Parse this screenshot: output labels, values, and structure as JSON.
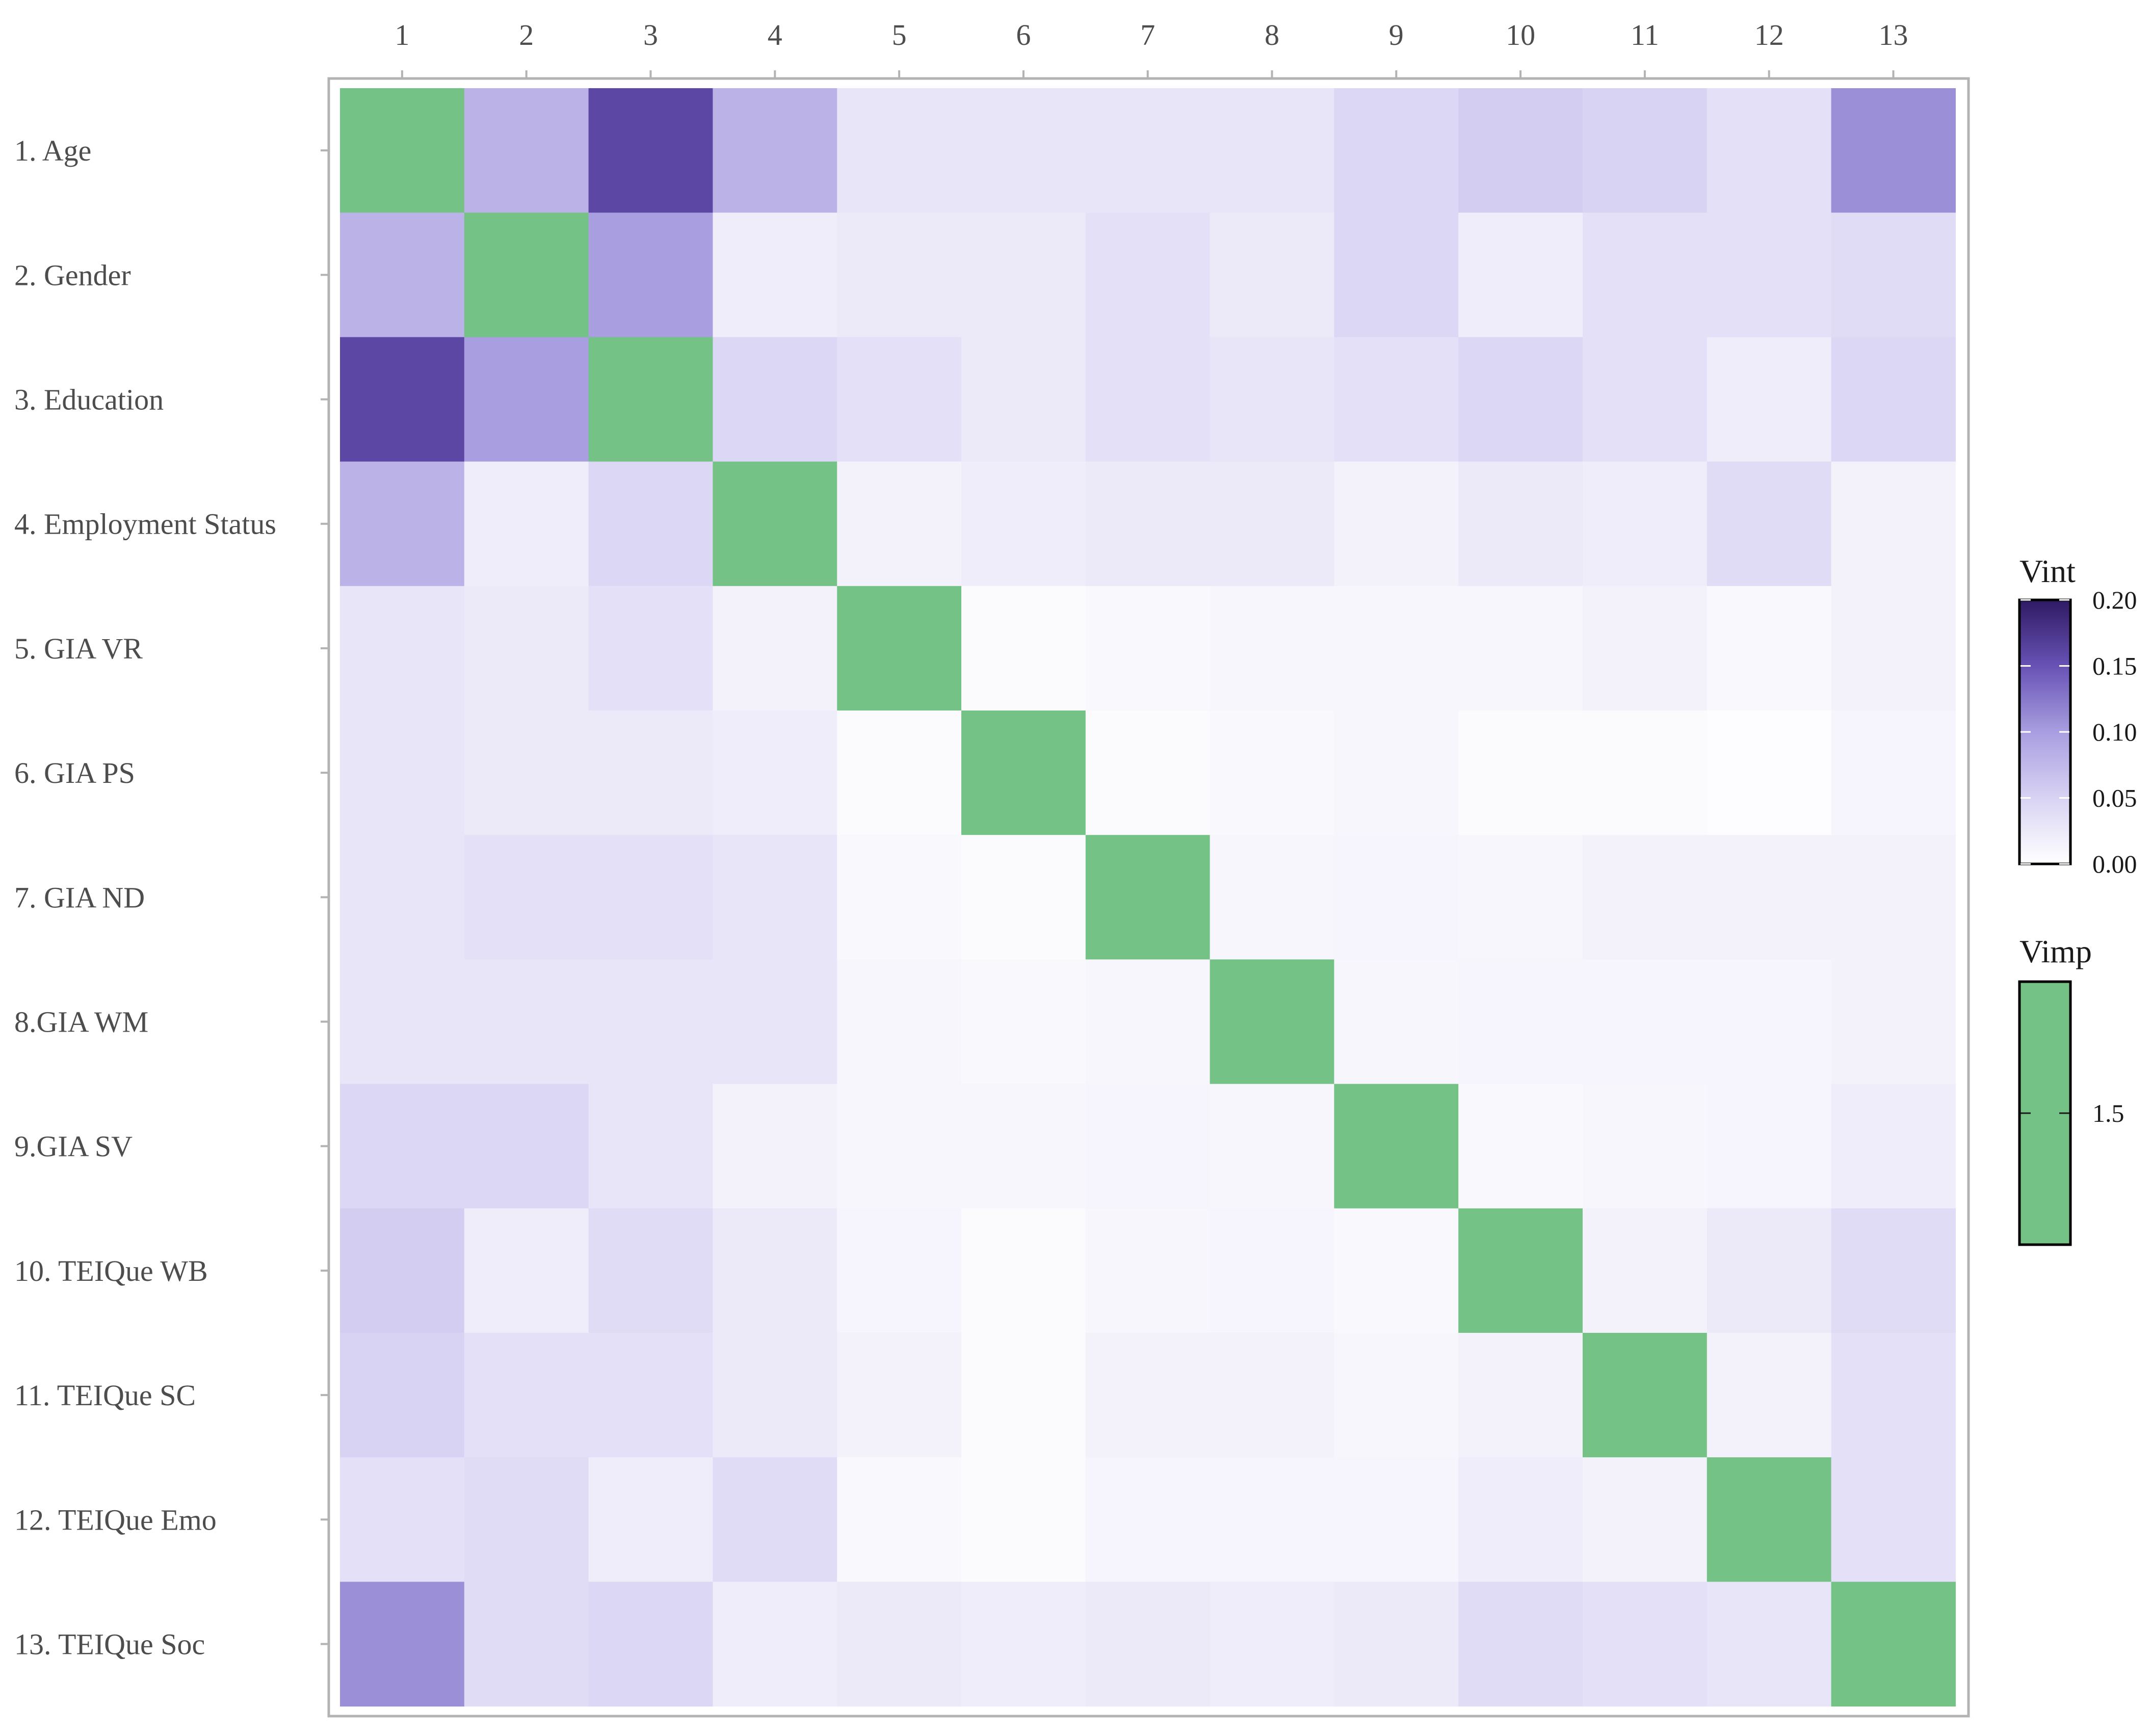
{
  "chart_data": {
    "type": "heatmap",
    "x_tick_labels": [
      "1",
      "2",
      "3",
      "4",
      "5",
      "6",
      "7",
      "8",
      "9",
      "10",
      "11",
      "12",
      "13"
    ],
    "y_tick_labels": [
      "1. Age",
      "2. Gender",
      "3. Education",
      "4. Employment Status",
      "5. GIA VR",
      "6. GIA PS",
      "7. GIA ND",
      "8.GIA WM",
      "9.GIA SV",
      "10. TEIQue WB",
      "11. TEIQue SC",
      "12. TEIQue Emo",
      "13. TEIQue Soc"
    ],
    "vint_matrix": [
      [
        null,
        0.08,
        0.16,
        0.08,
        0.03,
        0.03,
        0.03,
        0.03,
        0.045,
        0.055,
        0.05,
        0.035,
        0.11
      ],
      [
        0.08,
        null,
        0.1,
        0.02,
        0.025,
        0.025,
        0.035,
        0.025,
        0.045,
        0.02,
        0.035,
        0.035,
        0.04
      ],
      [
        0.16,
        0.1,
        null,
        0.045,
        0.035,
        0.025,
        0.035,
        0.03,
        0.035,
        0.045,
        0.035,
        0.02,
        0.045
      ],
      [
        0.08,
        0.02,
        0.045,
        null,
        0.015,
        0.02,
        0.025,
        0.025,
        0.015,
        0.025,
        0.02,
        0.04,
        0.015
      ],
      [
        0.03,
        0.025,
        0.035,
        0.015,
        null,
        0.005,
        0.008,
        0.01,
        0.01,
        0.01,
        0.015,
        0.008,
        0.015
      ],
      [
        0.03,
        0.025,
        0.025,
        0.02,
        0.005,
        null,
        0.005,
        0.008,
        0.01,
        0.005,
        0.005,
        0.003,
        0.012
      ],
      [
        0.03,
        0.035,
        0.035,
        0.03,
        0.008,
        0.005,
        null,
        0.01,
        0.012,
        0.01,
        0.015,
        0.015,
        0.015
      ],
      [
        0.03,
        0.03,
        0.03,
        0.03,
        0.01,
        0.008,
        0.01,
        null,
        0.01,
        0.012,
        0.012,
        0.012,
        0.015
      ],
      [
        0.045,
        0.045,
        0.03,
        0.015,
        0.01,
        0.01,
        0.012,
        0.01,
        null,
        0.008,
        0.01,
        0.012,
        0.02
      ],
      [
        0.055,
        0.02,
        0.04,
        0.025,
        0.012,
        0.005,
        0.01,
        0.012,
        0.008,
        null,
        0.015,
        0.025,
        0.04
      ],
      [
        0.05,
        0.035,
        0.035,
        0.025,
        0.015,
        0.005,
        0.015,
        0.015,
        0.01,
        0.015,
        null,
        0.015,
        0.035
      ],
      [
        0.035,
        0.04,
        0.02,
        0.04,
        0.008,
        0.005,
        0.012,
        0.012,
        0.012,
        0.02,
        0.015,
        null,
        0.035
      ],
      [
        0.11,
        0.04,
        0.045,
        0.02,
        0.025,
        0.02,
        0.025,
        0.02,
        0.025,
        0.04,
        0.035,
        0.03,
        null
      ]
    ],
    "vimp_diagonal": [
      1.5,
      1.5,
      1.5,
      1.5,
      1.5,
      1.5,
      1.5,
      1.5,
      1.5,
      1.5,
      1.5,
      1.5,
      1.5
    ],
    "legends": [
      {
        "title": "Vint",
        "min": 0.0,
        "max": 0.2,
        "ticks": [
          "0.00",
          "0.05",
          "0.10",
          "0.15",
          "0.20"
        ],
        "tick_values": [
          0,
          0.05,
          0.1,
          0.15,
          0.2
        ],
        "low_color": "#ffffff",
        "high_color": "#2e1a63"
      },
      {
        "title": "Vimp",
        "ticks": [
          "1.5"
        ],
        "tick_values": [
          1.5
        ],
        "color": "#74c285"
      }
    ],
    "legend_position": "right",
    "x_axis_position": "top",
    "grid": false
  },
  "colors": {
    "vimp": "#74c285",
    "panel_border": "#b3b3b3",
    "tick_text": "#4d4d4d"
  }
}
